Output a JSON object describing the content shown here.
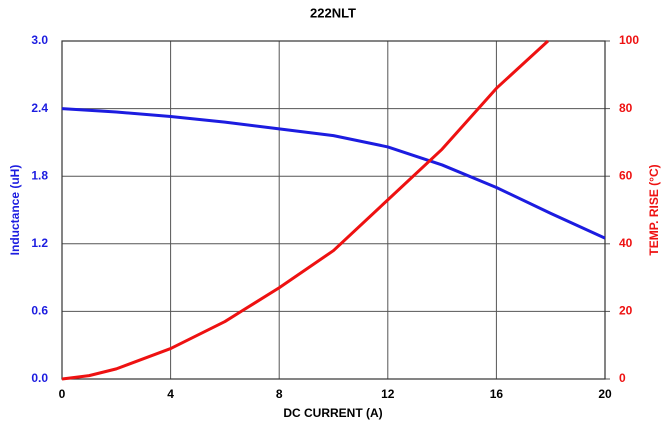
{
  "chart_data": {
    "type": "line",
    "title": "222NLT",
    "xlabel": "DC CURRENT (A)",
    "ylabel": "Inductance  (uH)",
    "y2label": "TEMP. RISE (°C)",
    "xlim": [
      0,
      20
    ],
    "xticks": [
      0,
      4,
      8,
      12,
      16,
      20
    ],
    "ylim": [
      0,
      3
    ],
    "yticks": [
      {
        "value": 0,
        "label": "0.0"
      },
      {
        "value": 0.6,
        "label": "0.6"
      },
      {
        "value": 1.2,
        "label": "1.2"
      },
      {
        "value": 1.8,
        "label": "1.8"
      },
      {
        "value": 2.4,
        "label": "2.4"
      },
      {
        "value": 3,
        "label": "3.0"
      }
    ],
    "y2lim": [
      0,
      100
    ],
    "y2ticks": [
      0,
      20,
      40,
      60,
      80,
      100
    ],
    "grid": true,
    "series": [
      {
        "name": "Inductance",
        "color": "#1c1ce0",
        "x": [
          0,
          2,
          4,
          6,
          8,
          10,
          12,
          14,
          16,
          18,
          20
        ],
        "values": [
          2.4,
          2.37,
          2.33,
          2.28,
          2.22,
          2.16,
          2.06,
          1.9,
          1.7,
          1.47,
          1.25
        ]
      },
      {
        "name": "Temp. Rise",
        "color": "#ee1111",
        "axis": "y2",
        "x": [
          0,
          1,
          2,
          4,
          6,
          6.6,
          8,
          10,
          12,
          14,
          16,
          17.9
        ],
        "values": [
          0,
          1,
          3,
          9,
          17,
          20,
          27,
          38,
          53,
          68,
          86,
          100
        ]
      }
    ]
  }
}
